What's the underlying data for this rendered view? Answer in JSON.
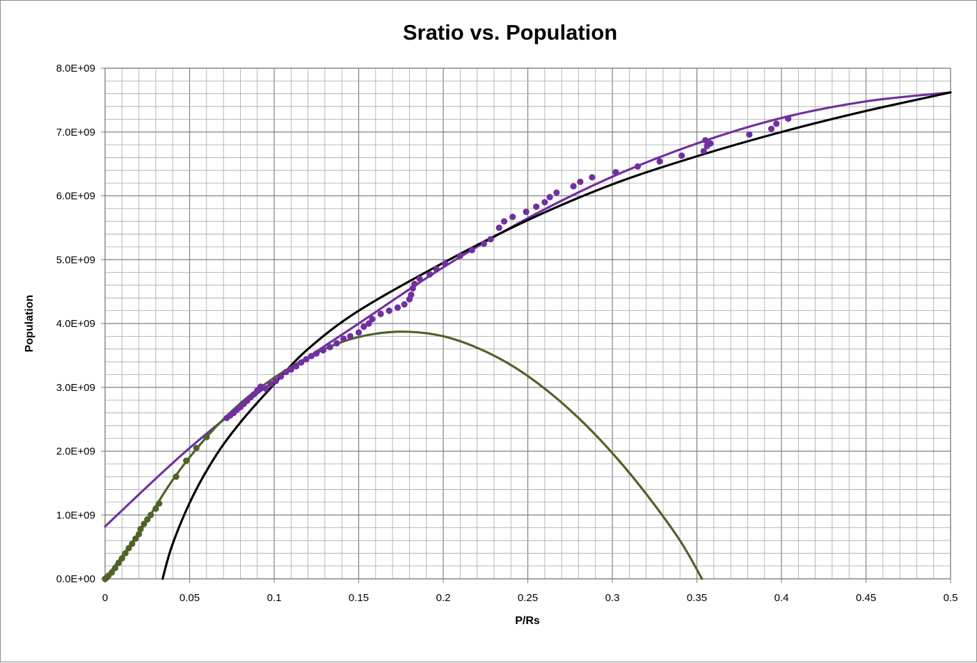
{
  "chart_data": {
    "type": "scatter",
    "title": "Sratio vs. Population",
    "xlabel": "P/Rs",
    "ylabel": "Population",
    "xlim": [
      0,
      0.5
    ],
    "ylim": [
      0,
      8000000000
    ],
    "x_ticks": [
      "0",
      "0.05",
      "0.1",
      "0.15",
      "0.2",
      "0.25",
      "0.3",
      "0.35",
      "0.4",
      "0.45",
      "0.5"
    ],
    "y_ticks": [
      "0.0E+00",
      "1.0E+09",
      "2.0E+09",
      "3.0E+09",
      "4.0E+09",
      "5.0E+09",
      "6.0E+09",
      "7.0E+09",
      "8.0E+09"
    ],
    "grid": true,
    "legend": "none",
    "series": [
      {
        "kind": "scatter",
        "color": "#7030a0",
        "points": [
          [
            0.072,
            2520000000.0
          ],
          [
            0.074,
            2560000000.0
          ],
          [
            0.076,
            2600000000.0
          ],
          [
            0.078,
            2650000000.0
          ],
          [
            0.08,
            2690000000.0
          ],
          [
            0.082,
            2740000000.0
          ],
          [
            0.084,
            2790000000.0
          ],
          [
            0.086,
            2840000000.0
          ],
          [
            0.088,
            2890000000.0
          ],
          [
            0.09,
            2950000000.0
          ],
          [
            0.092,
            3010000000.0
          ],
          [
            0.095,
            2980000000.0
          ],
          [
            0.098,
            3050000000.0
          ],
          [
            0.101,
            3100000000.0
          ],
          [
            0.104,
            3170000000.0
          ],
          [
            0.107,
            3240000000.0
          ],
          [
            0.11,
            3280000000.0
          ],
          [
            0.113,
            3330000000.0
          ],
          [
            0.116,
            3390000000.0
          ],
          [
            0.119,
            3440000000.0
          ],
          [
            0.122,
            3490000000.0
          ],
          [
            0.125,
            3530000000.0
          ],
          [
            0.129,
            3580000000.0
          ],
          [
            0.133,
            3630000000.0
          ],
          [
            0.137,
            3690000000.0
          ],
          [
            0.141,
            3760000000.0
          ],
          [
            0.145,
            3800000000.0
          ],
          [
            0.15,
            3860000000.0
          ],
          [
            0.153,
            3950000000.0
          ],
          [
            0.156,
            4000000000.0
          ],
          [
            0.158,
            4070000000.0
          ],
          [
            0.163,
            4150000000.0
          ],
          [
            0.168,
            4200000000.0
          ],
          [
            0.173,
            4250000000.0
          ],
          [
            0.177,
            4300000000.0
          ],
          [
            0.18,
            4380000000.0
          ],
          [
            0.181,
            4450000000.0
          ],
          [
            0.182,
            4550000000.0
          ],
          [
            0.183,
            4620000000.0
          ],
          [
            0.186,
            4700000000.0
          ],
          [
            0.192,
            4770000000.0
          ],
          [
            0.196,
            4850000000.0
          ],
          [
            0.201,
            4940000000.0
          ],
          [
            0.21,
            5060000000.0
          ],
          [
            0.217,
            5150000000.0
          ],
          [
            0.224,
            5250000000.0
          ],
          [
            0.228,
            5320000000.0
          ],
          [
            0.233,
            5500000000.0
          ],
          [
            0.236,
            5600000000.0
          ],
          [
            0.241,
            5670000000.0
          ],
          [
            0.249,
            5750000000.0
          ],
          [
            0.255,
            5830000000.0
          ],
          [
            0.26,
            5900000000.0
          ],
          [
            0.263,
            5980000000.0
          ],
          [
            0.267,
            6050000000.0
          ],
          [
            0.277,
            6150000000.0
          ],
          [
            0.281,
            6220000000.0
          ],
          [
            0.288,
            6290000000.0
          ],
          [
            0.302,
            6370000000.0
          ],
          [
            0.315,
            6460000000.0
          ],
          [
            0.328,
            6540000000.0
          ],
          [
            0.341,
            6630000000.0
          ],
          [
            0.354,
            6700000000.0
          ],
          [
            0.356,
            6780000000.0
          ],
          [
            0.355,
            6870000000.0
          ],
          [
            0.358,
            6820000000.0
          ],
          [
            0.381,
            6960000000.0
          ],
          [
            0.394,
            7050000000.0
          ],
          [
            0.397,
            7130000000.0
          ],
          [
            0.404,
            7210000000.0
          ]
        ]
      },
      {
        "kind": "scatter",
        "color": "#4f6228",
        "points": [
          [
            0.0,
            0.0
          ],
          [
            0.001,
            20000000.0
          ],
          [
            0.002,
            50000000.0
          ],
          [
            0.004,
            100000000.0
          ],
          [
            0.006,
            170000000.0
          ],
          [
            0.008,
            250000000.0
          ],
          [
            0.01,
            320000000.0
          ],
          [
            0.012,
            400000000.0
          ],
          [
            0.014,
            480000000.0
          ],
          [
            0.016,
            550000000.0
          ],
          [
            0.018,
            630000000.0
          ],
          [
            0.02,
            700000000.0
          ],
          [
            0.021,
            780000000.0
          ],
          [
            0.023,
            860000000.0
          ],
          [
            0.025,
            930000000.0
          ],
          [
            0.027,
            1000000000.0
          ],
          [
            0.03,
            1100000000.0
          ],
          [
            0.032,
            1180000000.0
          ],
          [
            0.042,
            1600000000.0
          ],
          [
            0.048,
            1850000000.0
          ],
          [
            0.054,
            2050000000.0
          ],
          [
            0.06,
            2220000000.0
          ]
        ]
      },
      {
        "kind": "curve",
        "color": "#7030a0",
        "points": [
          [
            0.0,
            820000000.0
          ],
          [
            0.05,
            2050000000.0
          ],
          [
            0.1,
            3100000000.0
          ],
          [
            0.15,
            4000000000.0
          ],
          [
            0.2,
            4880000000.0
          ],
          [
            0.25,
            5650000000.0
          ],
          [
            0.3,
            6300000000.0
          ],
          [
            0.35,
            6820000000.0
          ],
          [
            0.4,
            7220000000.0
          ],
          [
            0.45,
            7480000000.0
          ],
          [
            0.5,
            7620000000.0
          ]
        ]
      },
      {
        "kind": "curve",
        "color": "#000000",
        "points": [
          [
            0.034,
            0.0
          ],
          [
            0.04,
            550000000.0
          ],
          [
            0.052,
            1300000000.0
          ],
          [
            0.066,
            1950000000.0
          ],
          [
            0.08,
            2450000000.0
          ],
          [
            0.1,
            3050000000.0
          ],
          [
            0.12,
            3600000000.0
          ],
          [
            0.15,
            4200000000.0
          ],
          [
            0.2,
            4950000000.0
          ],
          [
            0.25,
            5620000000.0
          ],
          [
            0.3,
            6180000000.0
          ],
          [
            0.35,
            6620000000.0
          ],
          [
            0.4,
            7000000000.0
          ],
          [
            0.45,
            7330000000.0
          ],
          [
            0.5,
            7620000000.0
          ]
        ]
      },
      {
        "kind": "curve",
        "color": "#4f6228",
        "points": [
          [
            0.0,
            0.0
          ],
          [
            0.02,
            720000000.0
          ],
          [
            0.04,
            1550000000.0
          ],
          [
            0.06,
            2220000000.0
          ],
          [
            0.08,
            2750000000.0
          ],
          [
            0.1,
            3150000000.0
          ],
          [
            0.12,
            3470000000.0
          ],
          [
            0.14,
            3710000000.0
          ],
          [
            0.16,
            3840000000.0
          ],
          [
            0.18,
            3870000000.0
          ],
          [
            0.2,
            3800000000.0
          ],
          [
            0.22,
            3620000000.0
          ],
          [
            0.24,
            3350000000.0
          ],
          [
            0.26,
            2980000000.0
          ],
          [
            0.28,
            2520000000.0
          ],
          [
            0.3,
            1970000000.0
          ],
          [
            0.32,
            1330000000.0
          ],
          [
            0.34,
            600000000.0
          ],
          [
            0.353,
            0.0
          ]
        ]
      }
    ]
  }
}
